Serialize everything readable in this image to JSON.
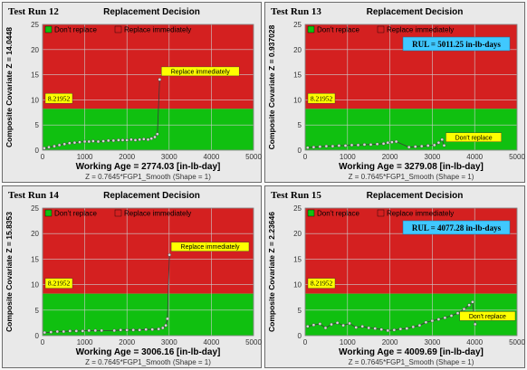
{
  "colors": {
    "dont_replace": "#10c010",
    "replace_immediately": "#d42020",
    "grid": "#cccccc",
    "callout": "#ffff00",
    "rul_box": "#40c8ff",
    "marker": "#d8d8d8"
  },
  "chart_data": [
    {
      "type": "scatter",
      "panel_title": "Test Run 12",
      "title": "Replacement Decision",
      "legend": [
        "Don't replace",
        "Replace immediately"
      ],
      "xlabel": "Working Age = 2774.03 [in-lb-day]",
      "ylabel": "Composite Covariate Z = 14.0448",
      "footnote": "Z = 0.7645*FGP1_Smooth        (Shape = 1)",
      "xlim": [
        0,
        5000
      ],
      "ylim": [
        0,
        25
      ],
      "xticks": [
        0,
        1000,
        2000,
        3000,
        4000,
        5000
      ],
      "yticks": [
        0,
        5,
        10,
        15,
        20,
        25
      ],
      "threshold": 8.21952,
      "threshold_label": "8.21952",
      "decision_label": "Replace immediately",
      "rul_label": "",
      "points": [
        [
          40,
          0.4
        ],
        [
          150,
          0.6
        ],
        [
          280,
          0.8
        ],
        [
          400,
          1.0
        ],
        [
          520,
          1.2
        ],
        [
          640,
          1.4
        ],
        [
          760,
          1.5
        ],
        [
          880,
          1.6
        ],
        [
          1000,
          1.7
        ],
        [
          1100,
          1.7
        ],
        [
          1200,
          1.8
        ],
        [
          1320,
          1.7
        ],
        [
          1440,
          1.8
        ],
        [
          1560,
          1.9
        ],
        [
          1680,
          1.9
        ],
        [
          1800,
          2.0
        ],
        [
          1900,
          2.0
        ],
        [
          2000,
          2.0
        ],
        [
          2100,
          2.1
        ],
        [
          2200,
          2.0
        ],
        [
          2300,
          2.1
        ],
        [
          2400,
          2.2
        ],
        [
          2500,
          2.1
        ],
        [
          2580,
          2.3
        ],
        [
          2660,
          2.6
        ],
        [
          2720,
          3.2
        ],
        [
          2774,
          14.0448
        ]
      ]
    },
    {
      "type": "scatter",
      "panel_title": "Test Run 13",
      "title": "Replacement Decision",
      "legend": [
        "Don't replace",
        "Replace immediately"
      ],
      "xlabel": "Working Age = 3279.08 [in-lb-day]",
      "ylabel": "Composite Covariate Z = 0.937028",
      "footnote": "Z = 0.7645*FGP1_Smooth        (Shape = 1)",
      "xlim": [
        0,
        5000
      ],
      "ylim": [
        0,
        25
      ],
      "xticks": [
        0,
        1000,
        2000,
        3000,
        4000,
        5000
      ],
      "yticks": [
        0,
        5,
        10,
        15,
        20,
        25
      ],
      "threshold": 8.21952,
      "threshold_label": "8.21952",
      "decision_label": "Don't replace",
      "rul_label": "RUL = 5011.25 in-lb-days",
      "points": [
        [
          60,
          0.5
        ],
        [
          200,
          0.6
        ],
        [
          350,
          0.7
        ],
        [
          500,
          0.8
        ],
        [
          650,
          0.8
        ],
        [
          800,
          0.9
        ],
        [
          950,
          0.9
        ],
        [
          1100,
          1.0
        ],
        [
          1250,
          1.0
        ],
        [
          1400,
          1.1
        ],
        [
          1550,
          1.1
        ],
        [
          1700,
          1.2
        ],
        [
          1850,
          1.3
        ],
        [
          1950,
          1.5
        ],
        [
          2050,
          1.6
        ],
        [
          2150,
          1.7
        ],
        [
          2450,
          0.6
        ],
        [
          2600,
          0.7
        ],
        [
          2750,
          0.8
        ],
        [
          2900,
          0.9
        ],
        [
          3050,
          1.0
        ],
        [
          3150,
          1.5
        ],
        [
          3230,
          2.1
        ],
        [
          3279,
          0.937
        ]
      ]
    },
    {
      "type": "scatter",
      "panel_title": "Test Run 14",
      "title": "Replacement Decision",
      "legend": [
        "Don't replace",
        "Replace immediately"
      ],
      "xlabel": "Working Age = 3006.16 [in-lb-day]",
      "ylabel": "Composite Covariate Z = 15.8353",
      "footnote": "Z = 0.7645*FGP1_Smooth        (Shape = 1)",
      "xlim": [
        0,
        5000
      ],
      "ylim": [
        0,
        25
      ],
      "xticks": [
        0,
        1000,
        2000,
        3000,
        4000,
        5000
      ],
      "yticks": [
        0,
        5,
        10,
        15,
        20,
        25
      ],
      "threshold": 8.21952,
      "threshold_label": "8.21952",
      "decision_label": "Replace immediately",
      "rul_label": "",
      "points": [
        [
          50,
          0.6
        ],
        [
          200,
          0.7
        ],
        [
          350,
          0.8
        ],
        [
          500,
          0.8
        ],
        [
          650,
          0.9
        ],
        [
          800,
          0.9
        ],
        [
          950,
          0.9
        ],
        [
          1100,
          1.0
        ],
        [
          1250,
          1.0
        ],
        [
          1400,
          1.0
        ],
        [
          1700,
          1.0
        ],
        [
          1850,
          1.1
        ],
        [
          2000,
          1.1
        ],
        [
          2150,
          1.1
        ],
        [
          2300,
          1.1
        ],
        [
          2450,
          1.2
        ],
        [
          2600,
          1.2
        ],
        [
          2750,
          1.3
        ],
        [
          2850,
          1.5
        ],
        [
          2920,
          2.0
        ],
        [
          2960,
          3.3
        ],
        [
          3006,
          15.8353
        ]
      ]
    },
    {
      "type": "scatter",
      "panel_title": "Test Run 15",
      "title": "Replacement Decision",
      "legend": [
        "Don't replace",
        "Replace immediately"
      ],
      "xlabel": "Working Age = 4009.69 [in-lb-day]",
      "ylabel": "Composite Covariate Z = 2.23646",
      "footnote": "Z = 0.7645*FGP1_Smooth        (Shape = 1)",
      "xlim": [
        0,
        5000
      ],
      "ylim": [
        0,
        25
      ],
      "xticks": [
        0,
        1000,
        2000,
        3000,
        4000,
        5000
      ],
      "yticks": [
        0,
        5,
        10,
        15,
        20,
        25
      ],
      "threshold": 8.21952,
      "threshold_label": "8.21952",
      "decision_label": "Don't replace",
      "rul_label": "RUL = 4077.28 in-lb-days",
      "points": [
        [
          60,
          1.8
        ],
        [
          200,
          2.1
        ],
        [
          350,
          2.3
        ],
        [
          480,
          1.5
        ],
        [
          620,
          2.2
        ],
        [
          760,
          2.5
        ],
        [
          900,
          2.0
        ],
        [
          1050,
          2.4
        ],
        [
          1200,
          1.6
        ],
        [
          1350,
          1.8
        ],
        [
          1500,
          1.5
        ],
        [
          1650,
          1.4
        ],
        [
          1800,
          1.2
        ],
        [
          1950,
          1.0
        ],
        [
          2100,
          1.1
        ],
        [
          2250,
          1.3
        ],
        [
          2400,
          1.4
        ],
        [
          2550,
          1.7
        ],
        [
          2700,
          2.0
        ],
        [
          2850,
          2.6
        ],
        [
          3000,
          2.9
        ],
        [
          3150,
          3.2
        ],
        [
          3300,
          3.5
        ],
        [
          3450,
          3.9
        ],
        [
          3600,
          4.4
        ],
        [
          3750,
          5.2
        ],
        [
          3870,
          6.0
        ],
        [
          3950,
          6.6
        ],
        [
          4009.69,
          2.23646
        ]
      ]
    }
  ]
}
